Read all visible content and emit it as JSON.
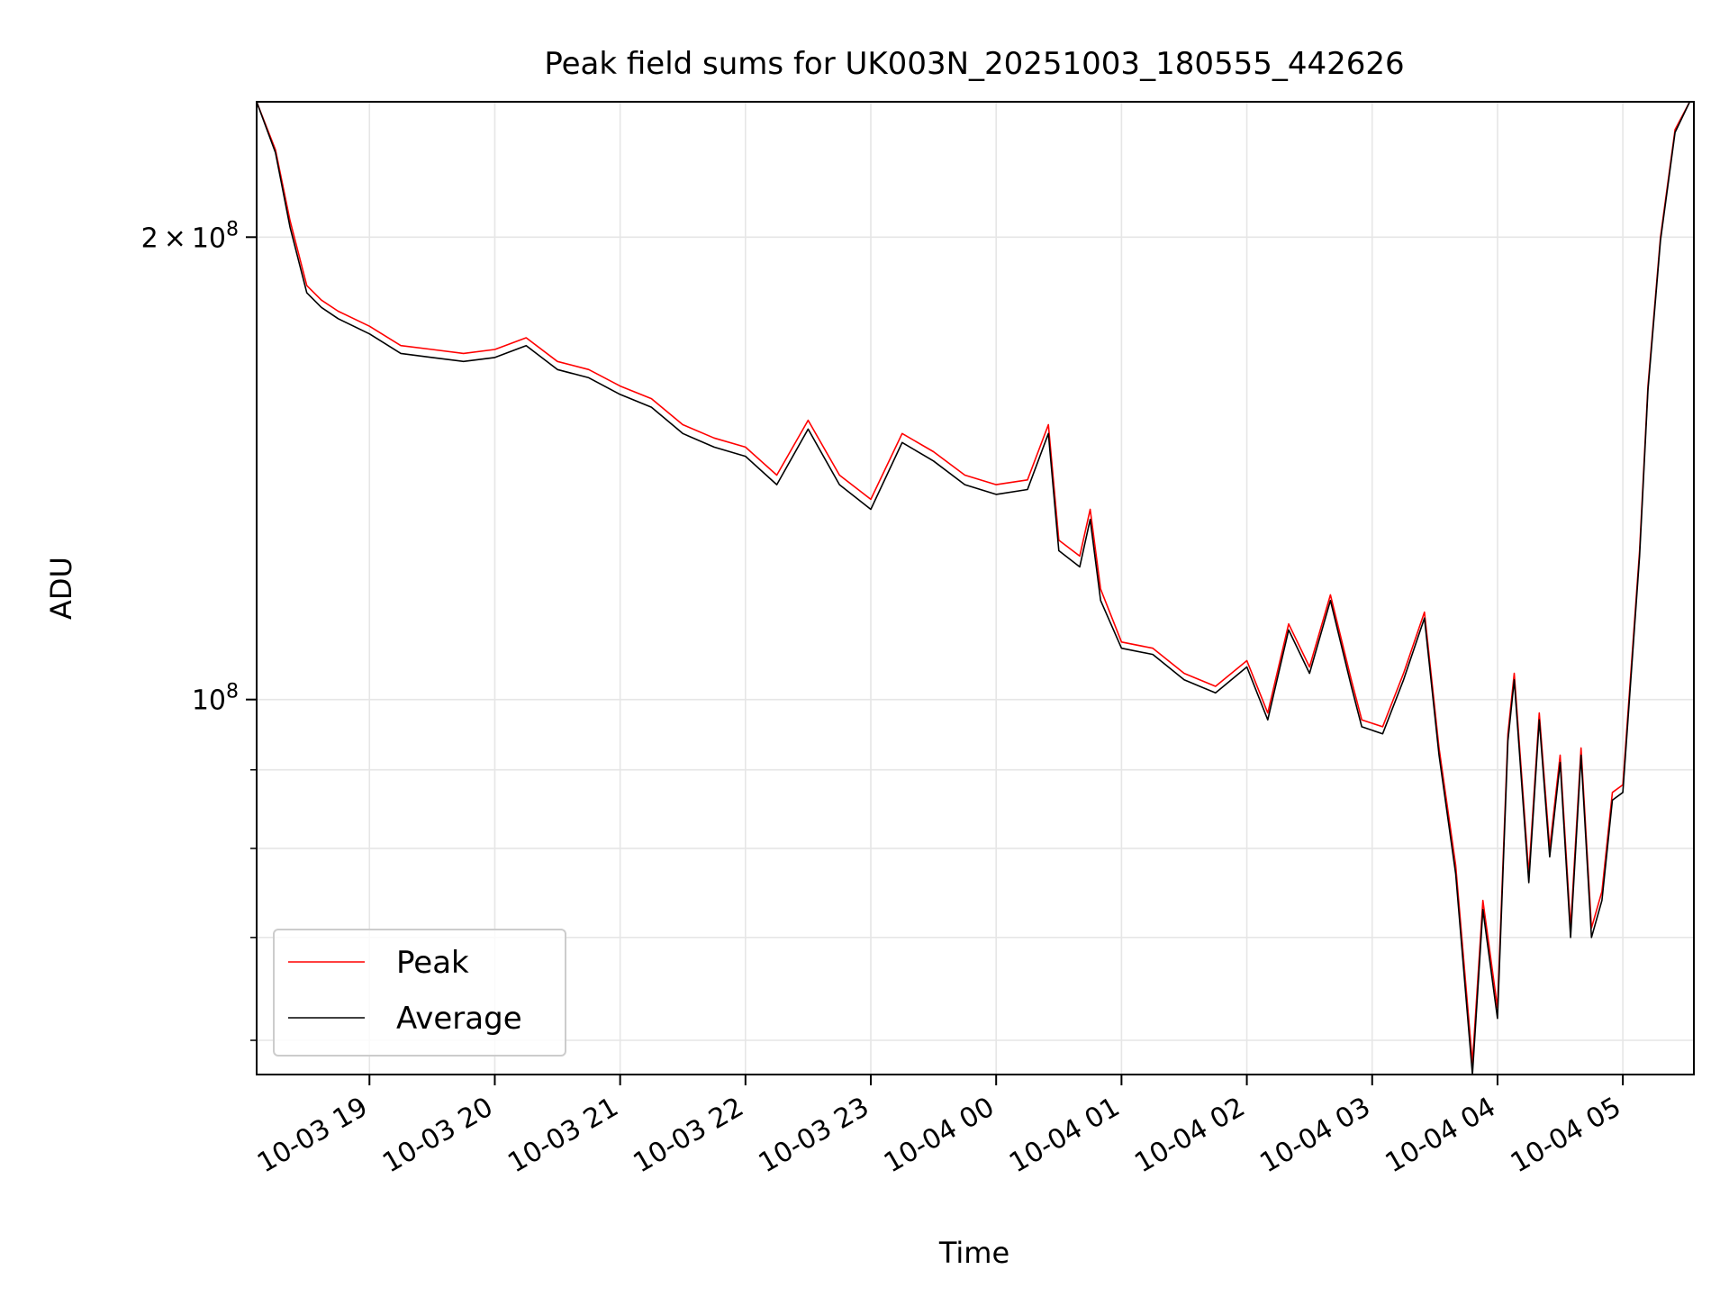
{
  "chart_data": {
    "type": "line",
    "title": "Peak field sums for UK003N_20251003_180555_442626",
    "xlabel": "Time",
    "ylabel": "ADU",
    "y_scale": "log",
    "ylim": [
      57000000,
      245000000
    ],
    "xlim": [
      "2025-10-03 18:06",
      "2025-10-04 05:34"
    ],
    "x_ticks": [
      "10-03 19",
      "10-03 20",
      "10-03 21",
      "10-03 22",
      "10-03 23",
      "10-04 00",
      "10-04 01",
      "10-04 02",
      "10-04 03",
      "10-04 04",
      "10-04 05"
    ],
    "y_tick_labels": [
      {
        "value": 200000000,
        "mantissa": "2",
        "times": "×",
        "base": "10",
        "exp": "8"
      },
      {
        "value": 100000000,
        "mantissa": "",
        "times": "",
        "base": "10",
        "exp": "8"
      }
    ],
    "y_minor_ticks": [
      60000000,
      70000000,
      80000000,
      90000000
    ],
    "grid": true,
    "legend_position": "lower-left",
    "series": [
      {
        "name": "Peak",
        "color": "#ff0000",
        "x": [
          "2025-10-03 18:06",
          "2025-10-03 18:15",
          "2025-10-03 18:22",
          "2025-10-03 18:30",
          "2025-10-03 18:37",
          "2025-10-03 18:45",
          "2025-10-03 19:00",
          "2025-10-03 19:15",
          "2025-10-03 19:30",
          "2025-10-03 19:45",
          "2025-10-03 20:00",
          "2025-10-03 20:15",
          "2025-10-03 20:30",
          "2025-10-03 20:45",
          "2025-10-03 21:00",
          "2025-10-03 21:15",
          "2025-10-03 21:30",
          "2025-10-03 21:45",
          "2025-10-03 22:00",
          "2025-10-03 22:15",
          "2025-10-03 22:30",
          "2025-10-03 22:45",
          "2025-10-03 23:00",
          "2025-10-03 23:15",
          "2025-10-03 23:30",
          "2025-10-03 23:45",
          "2025-10-04 00:00",
          "2025-10-04 00:15",
          "2025-10-04 00:25",
          "2025-10-04 00:30",
          "2025-10-04 00:40",
          "2025-10-04 00:45",
          "2025-10-04 00:50",
          "2025-10-04 01:00",
          "2025-10-04 01:15",
          "2025-10-04 01:30",
          "2025-10-04 01:45",
          "2025-10-04 02:00",
          "2025-10-04 02:10",
          "2025-10-04 02:20",
          "2025-10-04 02:30",
          "2025-10-04 02:40",
          "2025-10-04 02:50",
          "2025-10-04 02:55",
          "2025-10-04 03:05",
          "2025-10-04 03:15",
          "2025-10-04 03:25",
          "2025-10-04 03:32",
          "2025-10-04 03:40",
          "2025-10-04 03:48",
          "2025-10-04 03:53",
          "2025-10-04 04:00",
          "2025-10-04 04:05",
          "2025-10-04 04:08",
          "2025-10-04 04:15",
          "2025-10-04 04:20",
          "2025-10-04 04:25",
          "2025-10-04 04:30",
          "2025-10-04 04:35",
          "2025-10-04 04:40",
          "2025-10-04 04:45",
          "2025-10-04 04:50",
          "2025-10-04 04:55",
          "2025-10-04 05:00",
          "2025-10-04 05:08",
          "2025-10-04 05:12",
          "2025-10-04 05:18",
          "2025-10-04 05:25",
          "2025-10-04 05:32"
        ],
        "values": [
          245000000,
          228000000,
          205000000,
          186000000,
          182000000,
          179000000,
          175000000,
          170000000,
          169000000,
          168000000,
          169000000,
          172000000,
          166000000,
          164000000,
          160000000,
          157000000,
          151000000,
          148000000,
          146000000,
          140000000,
          152000000,
          140000000,
          135000000,
          149000000,
          145000000,
          140000000,
          138000000,
          139000000,
          151000000,
          127000000,
          124000000,
          133000000,
          118000000,
          109000000,
          108000000,
          104000000,
          102000000,
          106000000,
          98000000,
          112000000,
          105000000,
          117000000,
          103000000,
          97000000,
          96000000,
          104000000,
          114000000,
          93000000,
          78000000,
          58000000,
          74000000,
          63000000,
          95000000,
          104000000,
          77000000,
          98000000,
          80000000,
          92000000,
          71000000,
          93000000,
          71000000,
          75000000,
          87000000,
          88000000,
          125000000,
          160000000,
          200000000,
          235000000,
          245000000
        ]
      },
      {
        "name": "Average",
        "color": "#000000",
        "x": [
          "2025-10-03 18:06",
          "2025-10-03 18:15",
          "2025-10-03 18:22",
          "2025-10-03 18:30",
          "2025-10-03 18:37",
          "2025-10-03 18:45",
          "2025-10-03 19:00",
          "2025-10-03 19:15",
          "2025-10-03 19:30",
          "2025-10-03 19:45",
          "2025-10-03 20:00",
          "2025-10-03 20:15",
          "2025-10-03 20:30",
          "2025-10-03 20:45",
          "2025-10-03 21:00",
          "2025-10-03 21:15",
          "2025-10-03 21:30",
          "2025-10-03 21:45",
          "2025-10-03 22:00",
          "2025-10-03 22:15",
          "2025-10-03 22:30",
          "2025-10-03 22:45",
          "2025-10-03 23:00",
          "2025-10-03 23:15",
          "2025-10-03 23:30",
          "2025-10-03 23:45",
          "2025-10-04 00:00",
          "2025-10-04 00:15",
          "2025-10-04 00:25",
          "2025-10-04 00:30",
          "2025-10-04 00:40",
          "2025-10-04 00:45",
          "2025-10-04 00:50",
          "2025-10-04 01:00",
          "2025-10-04 01:15",
          "2025-10-04 01:30",
          "2025-10-04 01:45",
          "2025-10-04 02:00",
          "2025-10-04 02:10",
          "2025-10-04 02:20",
          "2025-10-04 02:30",
          "2025-10-04 02:40",
          "2025-10-04 02:50",
          "2025-10-04 02:55",
          "2025-10-04 03:05",
          "2025-10-04 03:15",
          "2025-10-04 03:25",
          "2025-10-04 03:32",
          "2025-10-04 03:40",
          "2025-10-04 03:48",
          "2025-10-04 03:53",
          "2025-10-04 04:00",
          "2025-10-04 04:05",
          "2025-10-04 04:08",
          "2025-10-04 04:15",
          "2025-10-04 04:20",
          "2025-10-04 04:25",
          "2025-10-04 04:30",
          "2025-10-04 04:35",
          "2025-10-04 04:40",
          "2025-10-04 04:45",
          "2025-10-04 04:50",
          "2025-10-04 04:55",
          "2025-10-04 05:00",
          "2025-10-04 05:08",
          "2025-10-04 05:12",
          "2025-10-04 05:18",
          "2025-10-04 05:25",
          "2025-10-04 05:32"
        ],
        "values": [
          245000000,
          227000000,
          203000000,
          184000000,
          180000000,
          177000000,
          173000000,
          168000000,
          167000000,
          166000000,
          167000000,
          170000000,
          164000000,
          162000000,
          158000000,
          155000000,
          149000000,
          146000000,
          144000000,
          138000000,
          150000000,
          138000000,
          133000000,
          147000000,
          143000000,
          138000000,
          136000000,
          137000000,
          149000000,
          125000000,
          122000000,
          131000000,
          116000000,
          108000000,
          107000000,
          103000000,
          101000000,
          105000000,
          97000000,
          111000000,
          104000000,
          116000000,
          102000000,
          96000000,
          95000000,
          103000000,
          113000000,
          92000000,
          77000000,
          57000000,
          73000000,
          62000000,
          94000000,
          103000000,
          76000000,
          97000000,
          79000000,
          91000000,
          70000000,
          92000000,
          70000000,
          74000000,
          86000000,
          87000000,
          124000000,
          159000000,
          199000000,
          234000000,
          245000000
        ]
      }
    ]
  }
}
